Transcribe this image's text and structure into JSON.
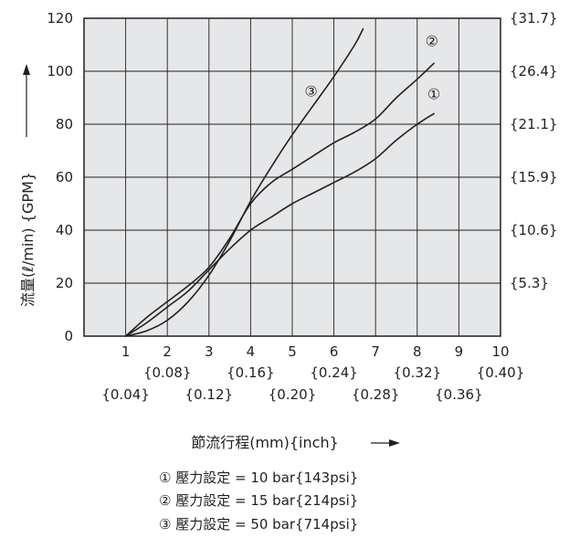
{
  "chart_data": {
    "type": "line",
    "title": "",
    "xlabel": "節流行程(mm){inch}",
    "ylabel": "流量(ℓ/min) {GPM}",
    "xlim": [
      0,
      10
    ],
    "ylim": [
      0,
      120
    ],
    "grid": true,
    "x_ticks": [
      "1",
      "2",
      "3",
      "4",
      "5",
      "6",
      "7",
      "8",
      "9",
      "10"
    ],
    "x_ticks_inch": [
      "{0.04}",
      "{0.08}",
      "{0.12}",
      "{0.16}",
      "{0.20}",
      "{0.24}",
      "{0.28}",
      "{0.32}",
      "{0.36}",
      "{0.40}"
    ],
    "y_ticks": [
      "0",
      "20",
      "40",
      "60",
      "80",
      "100",
      "120"
    ],
    "y_ticks_gpm": [
      "{5.3}",
      "{10.6}",
      "{15.9}",
      "{21.1}",
      "{26.4}",
      "{31.7}"
    ],
    "series": [
      {
        "name": "①",
        "x": [
          1.0,
          1.5,
          2.0,
          2.5,
          3.0,
          3.5,
          4.0,
          4.5,
          5.0,
          5.5,
          6.0,
          6.5,
          7.0,
          7.5,
          8.0,
          8.4
        ],
        "y": [
          0,
          5,
          11,
          17,
          25,
          33,
          40,
          45,
          50,
          54,
          58,
          62,
          67,
          74,
          80,
          84
        ]
      },
      {
        "name": "②",
        "x": [
          1.0,
          1.5,
          2.0,
          2.5,
          3.0,
          3.5,
          4.0,
          4.5,
          5.0,
          5.5,
          6.0,
          6.5,
          7.0,
          7.5,
          8.0,
          8.4
        ],
        "y": [
          0,
          7,
          13,
          19,
          26,
          37,
          50,
          58,
          63,
          68,
          73,
          77,
          82,
          90,
          97,
          103
        ]
      },
      {
        "name": "③",
        "x": [
          1.0,
          1.5,
          2.0,
          2.5,
          3.0,
          3.5,
          4.0,
          4.5,
          5.0,
          5.5,
          6.0,
          6.5,
          6.7
        ],
        "y": [
          0,
          2,
          6,
          13,
          23,
          36,
          51,
          64,
          76,
          87,
          98,
          110,
          116
        ]
      }
    ],
    "series_labels": [
      "①",
      "②",
      "③"
    ],
    "series_label_positions": [
      [
        8.4,
        91
      ],
      [
        8.35,
        111
      ],
      [
        5.45,
        92
      ]
    ],
    "legend": [
      "① 壓力設定 = 10 bar{143psi}",
      "② 壓力設定 = 15 bar{214psi}",
      "③ 壓力設定 = 50 bar{714psi}"
    ],
    "colors": {
      "plot_bg": "#e6e7e8",
      "line": "#231f20",
      "grid": "#231f20"
    }
  }
}
